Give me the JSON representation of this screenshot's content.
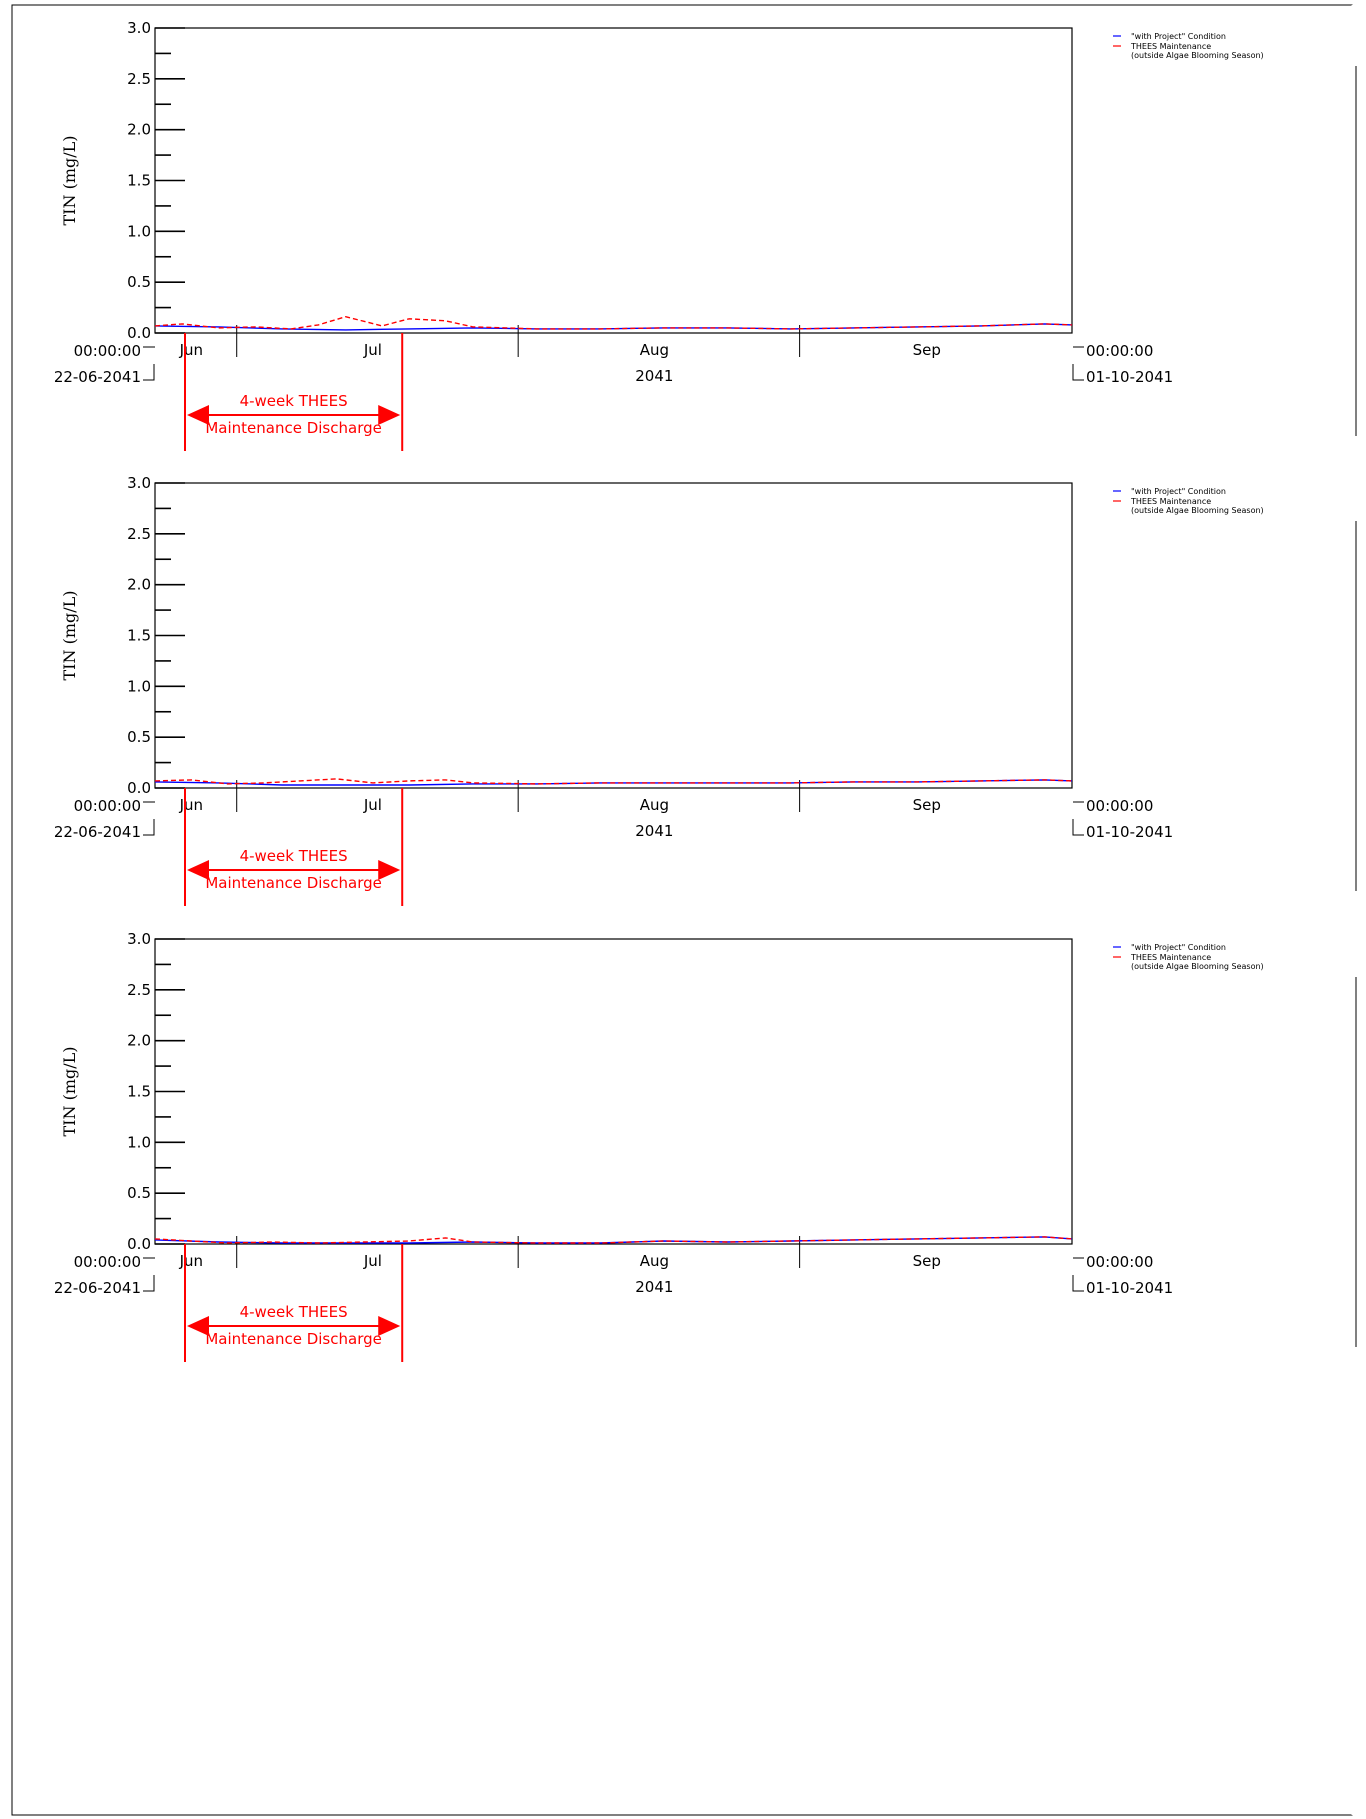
{
  "colors": {
    "axis": "#000000",
    "project": "#0000ff",
    "thees": "#ff0000",
    "annotation": "#ff0000"
  },
  "legend": {
    "project_label": "\"with Project\" Condition",
    "thees_label": "THEES Maintenance",
    "thees_sub": "(outside Algae Blooming Season)"
  },
  "annotation": {
    "line1": "4-week THEES",
    "line2": "Maintenance Discharge"
  },
  "chart_data": [
    {
      "type": "line",
      "ylabel": "TIN (mg/L)",
      "ylim": [
        0,
        3.0
      ],
      "y_ticks": [
        "3.0",
        "2.5",
        "2.0",
        "1.5",
        "1.0",
        "0.5",
        "0.0"
      ],
      "x_start_time": "00:00:00",
      "x_start_date": "22-06-2041",
      "x_end_time": "00:00:00",
      "x_end_date": "01-10-2041",
      "x_months": [
        "Jun",
        "Jul",
        "Aug",
        "Sep"
      ],
      "x_year": "2041",
      "series": [
        {
          "name": "\"with Project\" Condition",
          "x": [
            "2041-06-22",
            "2041-06-29",
            "2041-07-06",
            "2041-07-13",
            "2041-07-20",
            "2041-07-27",
            "2041-08-03",
            "2041-08-10",
            "2041-08-17",
            "2041-08-24",
            "2041-08-31",
            "2041-09-07",
            "2041-09-14",
            "2041-09-21",
            "2041-09-28",
            "2041-10-01"
          ],
          "values": [
            0.07,
            0.06,
            0.04,
            0.03,
            0.04,
            0.05,
            0.04,
            0.04,
            0.05,
            0.05,
            0.04,
            0.05,
            0.06,
            0.07,
            0.09,
            0.08
          ]
        },
        {
          "name": "THEES Maintenance",
          "x": [
            "2041-06-22",
            "2041-06-25",
            "2041-06-29",
            "2041-07-03",
            "2041-07-07",
            "2041-07-10",
            "2041-07-13",
            "2041-07-17",
            "2041-07-20",
            "2041-07-24",
            "2041-07-27",
            "2041-08-03",
            "2041-08-10",
            "2041-08-17",
            "2041-08-24",
            "2041-08-31",
            "2041-09-07",
            "2041-09-14",
            "2041-09-21",
            "2041-09-28",
            "2041-10-01"
          ],
          "values": [
            0.07,
            0.09,
            0.05,
            0.06,
            0.04,
            0.08,
            0.16,
            0.07,
            0.14,
            0.12,
            0.06,
            0.04,
            0.04,
            0.05,
            0.05,
            0.04,
            0.05,
            0.06,
            0.07,
            0.09,
            0.08
          ]
        }
      ]
    },
    {
      "type": "line",
      "ylabel": "TIN (mg/L)",
      "ylim": [
        0,
        3.0
      ],
      "y_ticks": [
        "3.0",
        "2.5",
        "2.0",
        "1.5",
        "1.0",
        "0.5",
        "0.0"
      ],
      "x_start_time": "00:00:00",
      "x_start_date": "22-06-2041",
      "x_end_time": "00:00:00",
      "x_end_date": "01-10-2041",
      "x_months": [
        "Jun",
        "Jul",
        "Aug",
        "Sep"
      ],
      "x_year": "2041",
      "series": [
        {
          "name": "\"with Project\" Condition",
          "x": [
            "2041-06-22",
            "2041-06-29",
            "2041-07-06",
            "2041-07-13",
            "2041-07-20",
            "2041-07-27",
            "2041-08-03",
            "2041-08-10",
            "2041-08-17",
            "2041-08-24",
            "2041-08-31",
            "2041-09-07",
            "2041-09-14",
            "2041-09-21",
            "2041-09-28",
            "2041-10-01"
          ],
          "values": [
            0.06,
            0.05,
            0.03,
            0.03,
            0.03,
            0.04,
            0.04,
            0.05,
            0.05,
            0.05,
            0.05,
            0.06,
            0.06,
            0.07,
            0.08,
            0.07
          ]
        },
        {
          "name": "THEES Maintenance",
          "x": [
            "2041-06-22",
            "2041-06-26",
            "2041-06-30",
            "2041-07-04",
            "2041-07-08",
            "2041-07-12",
            "2041-07-16",
            "2041-07-20",
            "2041-07-24",
            "2041-07-27",
            "2041-08-03",
            "2041-08-10",
            "2041-08-17",
            "2041-08-24",
            "2041-08-31",
            "2041-09-07",
            "2041-09-14",
            "2041-09-21",
            "2041-09-28",
            "2041-10-01"
          ],
          "values": [
            0.07,
            0.08,
            0.04,
            0.05,
            0.07,
            0.09,
            0.05,
            0.07,
            0.08,
            0.05,
            0.04,
            0.05,
            0.05,
            0.05,
            0.05,
            0.06,
            0.06,
            0.07,
            0.08,
            0.07
          ]
        }
      ]
    },
    {
      "type": "line",
      "ylabel": "TIN (mg/L)",
      "ylim": [
        0,
        3.0
      ],
      "y_ticks": [
        "3.0",
        "2.5",
        "2.0",
        "1.5",
        "1.0",
        "0.5",
        "0.0"
      ],
      "x_start_time": "00:00:00",
      "x_start_date": "22-06-2041",
      "x_end_time": "00:00:00",
      "x_end_date": "01-10-2041",
      "x_months": [
        "Jun",
        "Jul",
        "Aug",
        "Sep"
      ],
      "x_year": "2041",
      "series": [
        {
          "name": "\"with Project\" Condition",
          "x": [
            "2041-06-22",
            "2041-06-29",
            "2041-07-06",
            "2041-07-13",
            "2041-07-20",
            "2041-07-27",
            "2041-08-03",
            "2041-08-10",
            "2041-08-17",
            "2041-08-24",
            "2041-08-31",
            "2041-09-07",
            "2041-09-14",
            "2041-09-21",
            "2041-09-28",
            "2041-10-01"
          ],
          "values": [
            0.04,
            0.02,
            0.01,
            0.01,
            0.01,
            0.02,
            0.01,
            0.01,
            0.03,
            0.02,
            0.03,
            0.04,
            0.05,
            0.06,
            0.07,
            0.05
          ]
        },
        {
          "name": "THEES Maintenance",
          "x": [
            "2041-06-22",
            "2041-06-26",
            "2041-06-30",
            "2041-07-05",
            "2041-07-10",
            "2041-07-15",
            "2041-07-20",
            "2041-07-24",
            "2041-07-27",
            "2041-08-03",
            "2041-08-10",
            "2041-08-17",
            "2041-08-24",
            "2041-08-31",
            "2041-09-07",
            "2041-09-14",
            "2041-09-21",
            "2041-09-28",
            "2041-10-01"
          ],
          "values": [
            0.05,
            0.03,
            0.01,
            0.02,
            0.01,
            0.02,
            0.03,
            0.06,
            0.02,
            0.01,
            0.01,
            0.03,
            0.02,
            0.03,
            0.04,
            0.05,
            0.06,
            0.07,
            0.05
          ]
        }
      ]
    }
  ]
}
